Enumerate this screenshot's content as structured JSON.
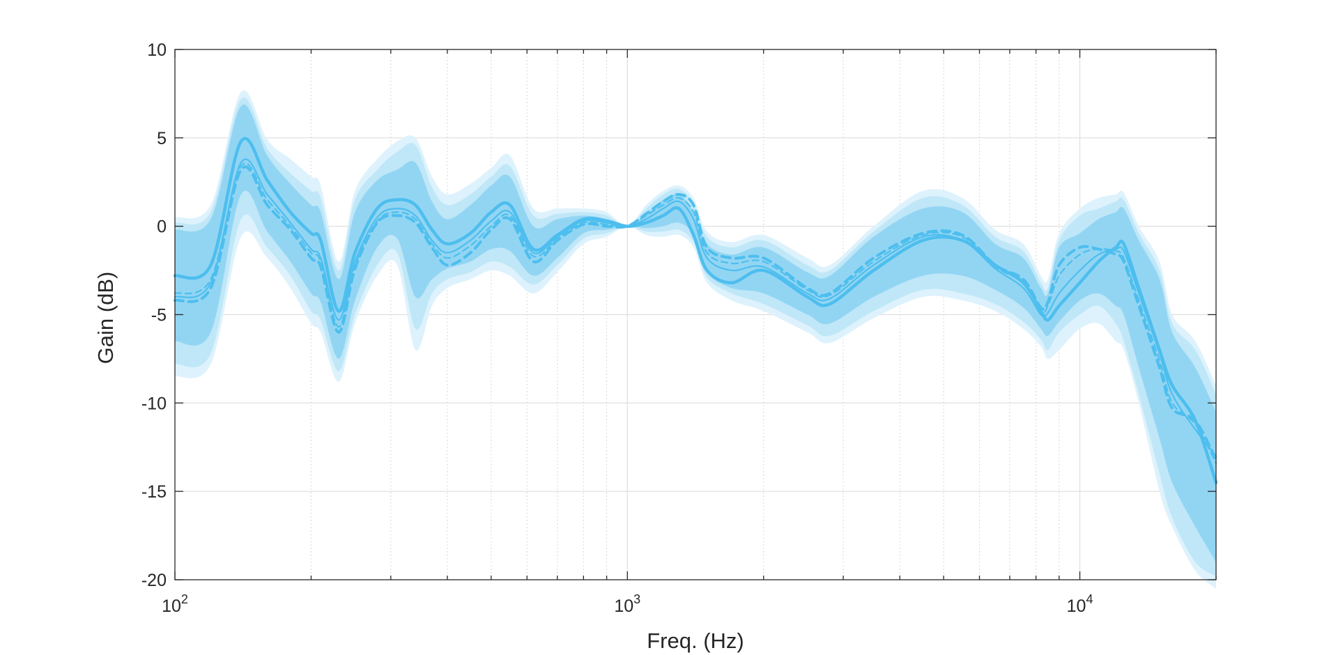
{
  "chart_data": {
    "type": "line",
    "title": "",
    "xlabel": "Freq. (Hz)",
    "ylabel": "Gain (dB)",
    "x_scale": "log",
    "xlim": [
      100,
      20000
    ],
    "ylim": [
      -20,
      10
    ],
    "grid": true,
    "x_ticks": [
      {
        "value": 100,
        "base": "10",
        "exp": "2"
      },
      {
        "value": 1000,
        "base": "10",
        "exp": "3"
      },
      {
        "value": 10000,
        "base": "10",
        "exp": "4"
      }
    ],
    "y_ticks": [
      {
        "value": 10,
        "label": "10"
      },
      {
        "value": 5,
        "label": "5"
      },
      {
        "value": 0,
        "label": "0"
      },
      {
        "value": -5,
        "label": "-5"
      },
      {
        "value": -10,
        "label": "-10"
      },
      {
        "value": -15,
        "label": "-15"
      },
      {
        "value": -20,
        "label": "-20"
      }
    ],
    "colors": {
      "line": "#4DBEEE",
      "band_outer": "#DDF2FC",
      "band_mid": "#BDE6F8",
      "band_inner": "#8DD3F2",
      "grid": "#dedede",
      "axis": "#262626"
    },
    "x": [
      100,
      120,
      140,
      160,
      180,
      200,
      210,
      230,
      250,
      280,
      310,
      340,
      370,
      400,
      450,
      500,
      550,
      620,
      700,
      800,
      900,
      1000,
      1100,
      1200,
      1300,
      1400,
      1500,
      1700,
      2000,
      2500,
      2800,
      3500,
      4500,
      5500,
      6500,
      7500,
      8200,
      8500,
      9000,
      10000,
      11000,
      12000,
      12500,
      13500,
      15000,
      16000,
      18000,
      20000
    ],
    "series": [
      {
        "style": "solid-thick",
        "values": [
          -2.8,
          -2.2,
          4.8,
          2.6,
          0.8,
          -0.4,
          -0.8,
          -4.8,
          -1.5,
          1.0,
          1.5,
          1.2,
          -0.2,
          -1.0,
          -0.4,
          0.8,
          1.2,
          -1.3,
          -0.5,
          0.4,
          0.3,
          0.0,
          0.2,
          0.6,
          1.0,
          -0.5,
          -2.5,
          -3.2,
          -2.5,
          -4.0,
          -4.4,
          -2.5,
          -0.8,
          -0.8,
          -2.2,
          -3.2,
          -4.8,
          -5.3,
          -4.5,
          -3.2,
          -2.0,
          -1.2,
          -1.0,
          -3.5,
          -7.0,
          -9.0,
          -11.0,
          -14.5
        ]
      },
      {
        "style": "solid-thin",
        "values": [
          -4.0,
          -3.2,
          3.6,
          1.8,
          0.2,
          -1.3,
          -1.8,
          -5.3,
          -2.0,
          0.5,
          1.0,
          0.6,
          -0.8,
          -1.5,
          -0.8,
          0.3,
          0.8,
          -1.5,
          -0.6,
          0.3,
          0.2,
          0.0,
          0.4,
          1.0,
          1.4,
          0.4,
          -1.8,
          -2.5,
          -2.3,
          -3.8,
          -4.1,
          -2.2,
          -0.6,
          -0.8,
          -2.4,
          -3.5,
          -5.0,
          -4.9,
          -3.8,
          -2.5,
          -1.6,
          -1.3,
          -1.4,
          -3.8,
          -7.2,
          -9.5,
          -11.5,
          -13.0
        ]
      },
      {
        "style": "dashed-thick",
        "values": [
          -4.2,
          -3.5,
          3.2,
          1.2,
          -0.2,
          -1.8,
          -2.3,
          -6.0,
          -2.4,
          0.2,
          0.6,
          0.2,
          -1.2,
          -2.2,
          -1.5,
          -0.2,
          0.4,
          -2.0,
          -0.8,
          0.1,
          0.0,
          0.0,
          0.7,
          1.4,
          1.8,
          1.2,
          -1.2,
          -1.8,
          -1.8,
          -3.5,
          -3.8,
          -1.8,
          -0.4,
          -0.5,
          -2.2,
          -3.0,
          -4.6,
          -4.3,
          -2.2,
          -1.2,
          -1.3,
          -1.6,
          -2.0,
          -4.5,
          -8.0,
          -10.3,
          -11.0,
          -13.2
        ]
      },
      {
        "style": "dashed-thin",
        "values": [
          -3.8,
          -3.0,
          3.4,
          1.5,
          0.0,
          -1.5,
          -2.0,
          -5.7,
          -2.2,
          0.3,
          0.8,
          0.4,
          -1.0,
          -1.8,
          -1.1,
          0.0,
          0.6,
          -1.7,
          -0.7,
          0.2,
          0.1,
          0.0,
          0.6,
          1.2,
          1.6,
          0.8,
          -1.5,
          -2.1,
          -2.0,
          -3.6,
          -3.9,
          -2.0,
          -0.5,
          -0.6,
          -2.3,
          -3.2,
          -4.8,
          -4.5,
          -2.8,
          -1.6,
          -1.3,
          -1.4,
          -1.8,
          -4.2,
          -7.6,
          -10.0,
          -11.2,
          -13.4
        ]
      }
    ],
    "band": {
      "lower_outer": [
        -8.5,
        -7.8,
        -0.6,
        -1.8,
        -3.5,
        -5.5,
        -6.0,
        -8.8,
        -5.5,
        -2.8,
        -2.2,
        -7.0,
        -4.5,
        -3.5,
        -3.0,
        -2.5,
        -2.8,
        -3.8,
        -2.6,
        -1.0,
        -0.6,
        0.0,
        -0.5,
        -0.6,
        -0.5,
        -1.2,
        -3.2,
        -4.2,
        -4.8,
        -6.0,
        -6.6,
        -5.2,
        -4.0,
        -4.2,
        -4.8,
        -5.8,
        -6.8,
        -7.5,
        -7.0,
        -5.8,
        -5.5,
        -6.5,
        -7.0,
        -10.0,
        -15.0,
        -17.0,
        -19.5,
        -20.5
      ],
      "lower_mid": [
        -7.8,
        -7.2,
        0.4,
        -1.2,
        -2.8,
        -4.8,
        -5.3,
        -8.2,
        -5.0,
        -2.2,
        -1.5,
        -5.8,
        -3.8,
        -3.0,
        -2.6,
        -2.0,
        -2.3,
        -3.3,
        -2.2,
        -0.7,
        -0.4,
        0.0,
        -0.3,
        -0.3,
        -0.2,
        -0.9,
        -2.9,
        -3.8,
        -4.4,
        -5.6,
        -6.2,
        -4.8,
        -3.6,
        -3.8,
        -4.4,
        -5.4,
        -6.4,
        -7.0,
        -6.0,
        -5.0,
        -4.5,
        -5.5,
        -6.5,
        -9.5,
        -14.0,
        -16.5,
        -19.0,
        -19.8
      ],
      "lower_inner": [
        -6.5,
        -6.0,
        1.8,
        -0.3,
        -2.0,
        -3.8,
        -4.3,
        -7.5,
        -4.2,
        -1.2,
        -0.7,
        -4.0,
        -3.0,
        -2.4,
        -2.0,
        -1.3,
        -1.4,
        -2.8,
        -1.8,
        -0.4,
        -0.2,
        0.0,
        -0.1,
        0.0,
        0.2,
        -0.5,
        -2.6,
        -3.5,
        -3.8,
        -5.0,
        -5.5,
        -4.0,
        -2.8,
        -2.8,
        -3.6,
        -4.6,
        -5.8,
        -6.2,
        -5.4,
        -4.2,
        -3.8,
        -4.5,
        -5.0,
        -8.0,
        -12.0,
        -14.5,
        -17.0,
        -19.0
      ],
      "upper_inner": [
        -0.2,
        0.4,
        6.8,
        4.0,
        2.4,
        1.2,
        0.8,
        -3.0,
        0.8,
        2.6,
        3.2,
        3.6,
        1.4,
        0.4,
        1.2,
        2.3,
        2.8,
        0.0,
        0.4,
        0.6,
        0.4,
        0.0,
        0.7,
        1.5,
        1.8,
        0.8,
        -1.0,
        -1.6,
        -1.2,
        -2.6,
        -2.8,
        -0.6,
        1.0,
        0.8,
        -1.0,
        -1.8,
        -3.5,
        -3.8,
        -1.2,
        -0.4,
        0.4,
        0.8,
        1.0,
        -0.8,
        -3.0,
        -6.0,
        -8.0,
        -10.5
      ],
      "upper_mid": [
        0.2,
        0.8,
        7.2,
        4.4,
        3.0,
        2.0,
        1.6,
        -2.5,
        1.5,
        3.2,
        4.2,
        4.6,
        2.2,
        1.2,
        1.8,
        2.8,
        3.4,
        0.6,
        0.7,
        0.8,
        0.6,
        0.0,
        1.0,
        1.8,
        2.1,
        1.3,
        -0.6,
        -1.2,
        -0.8,
        -2.2,
        -2.5,
        -0.3,
        1.6,
        1.2,
        -0.6,
        -1.4,
        -3.2,
        -3.5,
        -0.8,
        0.6,
        1.0,
        1.4,
        1.5,
        -0.4,
        -2.5,
        -5.5,
        -7.0,
        -9.5
      ],
      "upper_outer": [
        0.5,
        1.2,
        7.6,
        4.9,
        3.8,
        2.8,
        2.3,
        -2.0,
        2.0,
        3.8,
        4.8,
        5.0,
        2.8,
        1.8,
        2.4,
        3.3,
        4.0,
        1.0,
        1.0,
        1.0,
        0.8,
        0.0,
        1.2,
        2.0,
        2.3,
        1.6,
        -0.3,
        -0.9,
        -0.5,
        -1.8,
        -2.2,
        0.0,
        2.0,
        1.6,
        -0.2,
        -1.0,
        -2.8,
        -3.0,
        -0.4,
        1.0,
        1.6,
        1.8,
        1.9,
        0.0,
        -2.0,
        -5.0,
        -6.5,
        -9.0
      ]
    }
  }
}
